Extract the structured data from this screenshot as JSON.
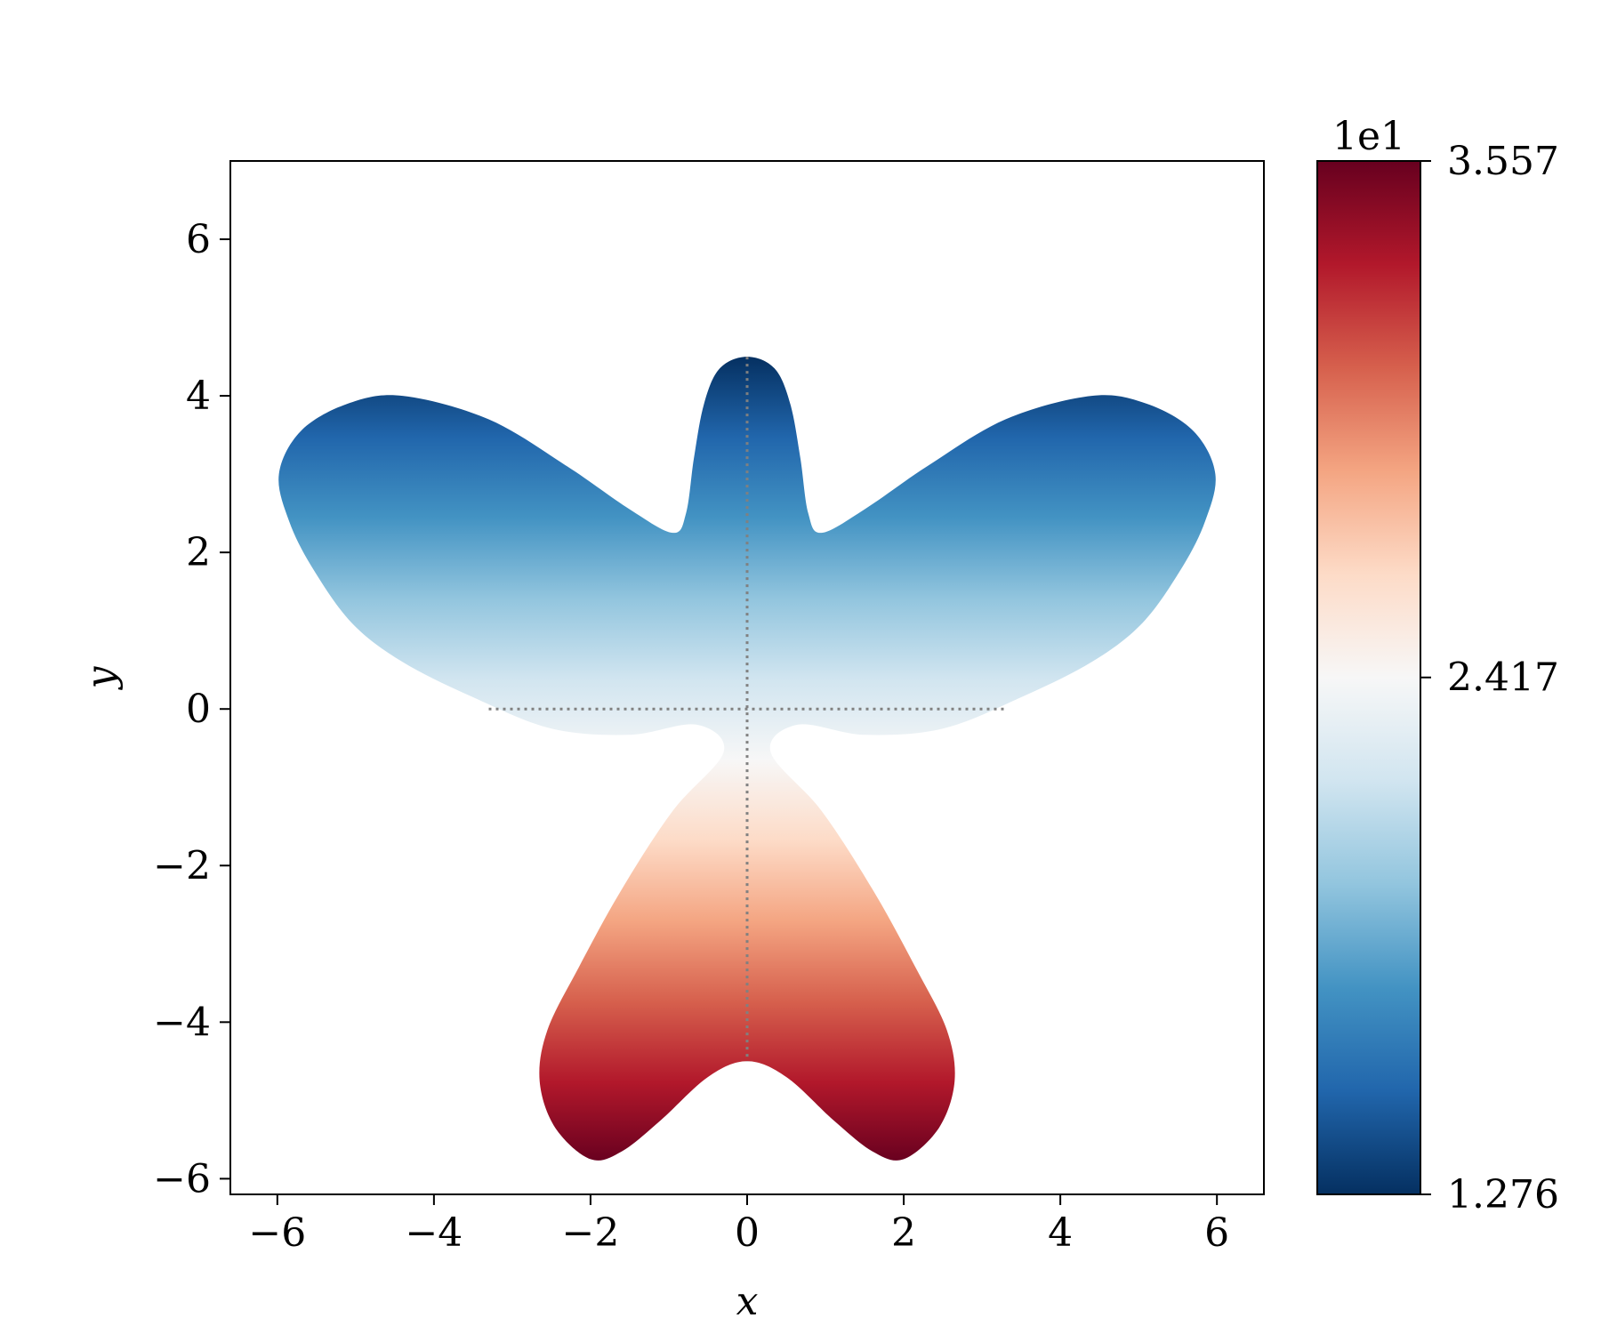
{
  "chart_data": {
    "type": "scatter",
    "title": "",
    "xlabel": "x",
    "ylabel": "y",
    "xlim": [
      -6.6,
      6.6
    ],
    "ylim": [
      -6.2,
      7.0
    ],
    "xticks": [
      -6,
      -4,
      -2,
      0,
      2,
      4,
      6
    ],
    "yticks": [
      -6,
      -4,
      -2,
      0,
      2,
      4,
      6
    ],
    "xtick_labels": [
      "−6",
      "−4",
      "−2",
      "0",
      "2",
      "4",
      "6"
    ],
    "ytick_labels": [
      "−6",
      "−4",
      "−2",
      "0",
      "2",
      "4",
      "6"
    ],
    "grid": false,
    "colormap": "RdBu_r",
    "color_variable_range": [
      12.76,
      35.57
    ],
    "colorbar": {
      "offset_label": "1e1",
      "ticks": [
        1.276,
        2.417,
        3.557
      ],
      "tick_labels": [
        "1.276",
        "2.417",
        "3.557"
      ],
      "colors_top_to_bottom": [
        "#67001f",
        "#b2182b",
        "#d6604d",
        "#f4a582",
        "#fddbc7",
        "#f7f7f7",
        "#d1e5f0",
        "#92c5de",
        "#4393c3",
        "#2166ac",
        "#053061"
      ]
    },
    "reference_lines": [
      {
        "orientation": "horizontal",
        "y": 0,
        "x_from": -3.3,
        "x_to": 3.3,
        "style": "dotted",
        "color": "#808080"
      },
      {
        "orientation": "vertical",
        "x": 0,
        "y_from": -4.5,
        "y_to": 4.5,
        "style": "dotted",
        "color": "#808080"
      }
    ],
    "shape": {
      "description_points": "outline traced in data units",
      "outline": [
        [
          0,
          4.5
        ],
        [
          0.35,
          4.35
        ],
        [
          0.55,
          3.9
        ],
        [
          0.68,
          3.2
        ],
        [
          0.78,
          2.5
        ],
        [
          0.95,
          2.25
        ],
        [
          1.5,
          2.55
        ],
        [
          2.3,
          3.1
        ],
        [
          3.3,
          3.7
        ],
        [
          4.4,
          4.0
        ],
        [
          5.1,
          3.9
        ],
        [
          5.7,
          3.55
        ],
        [
          5.98,
          3.0
        ],
        [
          5.85,
          2.4
        ],
        [
          5.55,
          1.8
        ],
        [
          5.05,
          1.1
        ],
        [
          4.4,
          0.6
        ],
        [
          3.5,
          0.15
        ],
        [
          2.5,
          -0.25
        ],
        [
          1.5,
          -0.33
        ],
        [
          0.65,
          -0.2
        ],
        [
          0.3,
          -0.55
        ],
        [
          0.95,
          -1.3
        ],
        [
          1.6,
          -2.3
        ],
        [
          2.15,
          -3.3
        ],
        [
          2.55,
          -4.1
        ],
        [
          2.65,
          -4.75
        ],
        [
          2.45,
          -5.35
        ],
        [
          2.0,
          -5.75
        ],
        [
          1.6,
          -5.65
        ],
        [
          1.1,
          -5.25
        ],
        [
          0.5,
          -4.7
        ],
        [
          0,
          -4.5
        ],
        [
          -0.5,
          -4.7
        ],
        [
          -1.1,
          -5.25
        ],
        [
          -1.6,
          -5.65
        ],
        [
          -2.0,
          -5.75
        ],
        [
          -2.45,
          -5.35
        ],
        [
          -2.65,
          -4.75
        ],
        [
          -2.55,
          -4.1
        ],
        [
          -2.15,
          -3.3
        ],
        [
          -1.6,
          -2.3
        ],
        [
          -0.95,
          -1.3
        ],
        [
          -0.3,
          -0.55
        ],
        [
          -0.65,
          -0.2
        ],
        [
          -1.5,
          -0.33
        ],
        [
          -2.5,
          -0.25
        ],
        [
          -3.5,
          0.15
        ],
        [
          -4.4,
          0.6
        ],
        [
          -5.05,
          1.1
        ],
        [
          -5.55,
          1.8
        ],
        [
          -5.85,
          2.4
        ],
        [
          -5.98,
          3.0
        ],
        [
          -5.7,
          3.55
        ],
        [
          -5.1,
          3.9
        ],
        [
          -4.4,
          4.0
        ],
        [
          -3.3,
          3.7
        ],
        [
          -2.3,
          3.1
        ],
        [
          -1.5,
          2.55
        ],
        [
          -0.95,
          2.25
        ],
        [
          -0.78,
          2.5
        ],
        [
          -0.68,
          3.2
        ],
        [
          -0.55,
          3.9
        ],
        [
          -0.35,
          4.35
        ]
      ],
      "color_gradient_y_range": [
        -5.8,
        4.5
      ]
    }
  }
}
